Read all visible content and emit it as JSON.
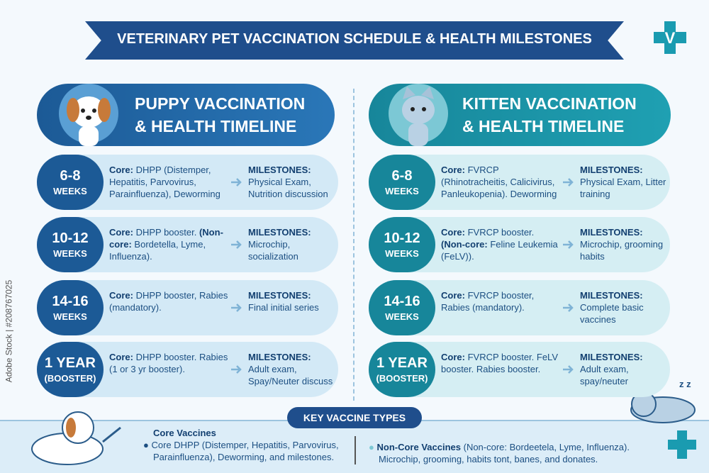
{
  "header": {
    "title": "VETERINARY PET VACCINATION SCHEDULE & HEALTH MILESTONES",
    "logo_letter": "V"
  },
  "puppy": {
    "title_lines": [
      "PUPPY VACCINATION",
      "& HEALTH TIMELINE"
    ],
    "rows": [
      {
        "age": "6-8",
        "unit": "WEEKS",
        "core_label": "Core:",
        "core_text": "DHPP (Distemper, Hepatitis, Parvovirus, Parainfluenza), Deworming",
        "milestones_label": "MILESTONES:",
        "milestones": "Physical Exam, Nutrition discussion"
      },
      {
        "age": "10-12",
        "unit": "WEEKS",
        "core_label": "Core:",
        "core_text": "DHPP booster.",
        "noncore_label": "(Non-core:",
        "noncore_text": "Bordetella, Lyme, Influenza).",
        "milestones_label": "MILESTONES:",
        "milestones": "Microchip, socialization"
      },
      {
        "age": "14-16",
        "unit": "WEEKS",
        "core_label": "Core:",
        "core_text": "DHPP booster, Rabies (mandatory).",
        "milestones_label": "MILESTONES:",
        "milestones": "Final initial series"
      },
      {
        "age": "1 YEAR",
        "unit": "(BOOSTER)",
        "core_label": "Core:",
        "core_text": "DHPP booster. Rabies (1 or 3 yr booster).",
        "milestones_label": "MILESTONES:",
        "milestones": "Adult exam, Spay/Neuter discuss"
      }
    ]
  },
  "kitten": {
    "title_lines": [
      "KITTEN VACCINATION",
      "& HEALTH TIMELINE"
    ],
    "rows": [
      {
        "age": "6-8",
        "unit": "WEEKS",
        "core_label": "Core:",
        "core_text": "FVRCP (Rhinotracheitis, Calicivirus, Panleukopenia). Deworming",
        "milestones_label": "MILESTONES:",
        "milestones": "Physical Exam, Litter training"
      },
      {
        "age": "10-12",
        "unit": "WEEKS",
        "core_label": "Core:",
        "core_text": "FVRCP booster.",
        "noncore_label": "(Non-core:",
        "noncore_text": "Feline Leukemia (FeLV)).",
        "milestones_label": "MILESTONES:",
        "milestones": "Microchip, grooming habits"
      },
      {
        "age": "14-16",
        "unit": "WEEKS",
        "core_label": "Core:",
        "core_text": "FVRCP booster, Rabies (mandatory).",
        "milestones_label": "MILESTONES:",
        "milestones": "Complete basic vaccines"
      },
      {
        "age": "1 YEAR",
        "unit": "(BOOSTER)",
        "core_label": "Core:",
        "core_text": "FVRCP booster. FeLV booster. Rabies booster.",
        "milestones_label": "MILESTONES:",
        "milestones": "Adult exam, spay/neuter"
      }
    ]
  },
  "key_types": {
    "title": "KEY VACCINE TYPES",
    "core": {
      "heading": "Core Vaccines",
      "text": "Core DHPP (Distemper, Hepatitis, Parvovirus, Parainfluenza), Deworming, and milestones."
    },
    "noncore": {
      "heading": "Non-Core Vaccines",
      "text": "(Non-core: Bordeetela, Lyme, Influenza). Microchip, grooming, habits tont, banes, and donates."
    }
  },
  "decorations": {
    "sleep": "z z"
  },
  "watermark": "Adobe Stock | #208767025"
}
